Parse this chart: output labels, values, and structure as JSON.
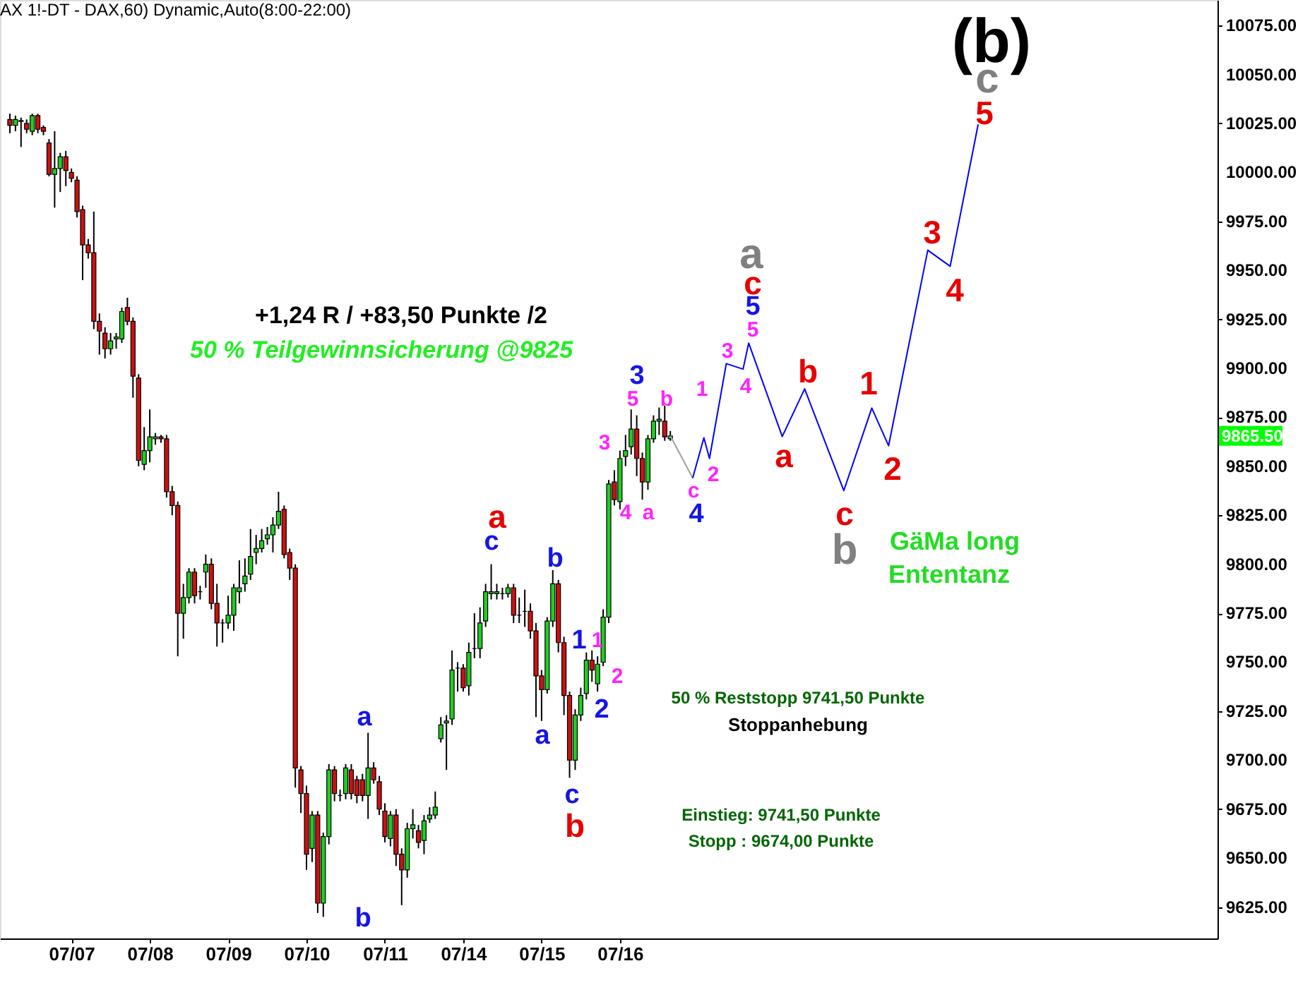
{
  "chart_data": {
    "type": "candlestick",
    "title": "AX 1!-DT - DAX,60) Dynamic,Auto(8:00-22:00)",
    "categories": [
      null,
      null,
      null,
      null,
      null,
      null,
      null,
      null,
      null,
      null,
      null,
      "07/07",
      null,
      null,
      null,
      null,
      null,
      null,
      null,
      null,
      null,
      null,
      null,
      null,
      null,
      "07/08",
      null,
      null,
      null,
      null,
      null,
      null,
      null,
      null,
      null,
      null,
      null,
      null,
      null,
      "07/09",
      null,
      null,
      null,
      null,
      null,
      null,
      null,
      null,
      null,
      null,
      null,
      null,
      null,
      "07/10",
      null,
      null,
      null,
      null,
      null,
      null,
      null,
      null,
      null,
      null,
      null,
      null,
      null,
      "07/11",
      null,
      null,
      null,
      null,
      null,
      null,
      null,
      null,
      null,
      null,
      null,
      null,
      null,
      "07/14",
      null,
      null,
      null,
      null,
      null,
      null,
      null,
      null,
      null,
      null,
      null,
      null,
      null,
      "07/15",
      null,
      null,
      null,
      null,
      null,
      null,
      null,
      null,
      null,
      null,
      null,
      null,
      null,
      "07/16",
      null,
      null,
      null,
      null,
      null,
      null,
      null,
      null,
      null,
      null,
      null,
      null,
      null,
      null,
      null,
      null,
      null,
      null,
      null,
      null,
      null,
      null,
      null,
      null,
      null,
      null,
      null,
      null,
      null,
      null,
      null,
      null,
      null,
      null,
      null,
      null,
      null,
      null,
      null,
      null,
      null,
      null,
      null,
      null,
      null,
      null,
      null,
      null,
      null,
      null,
      null,
      null,
      null,
      null,
      null,
      null,
      null,
      null,
      null,
      null,
      null,
      null,
      null,
      null,
      null,
      null,
      null,
      null,
      null,
      null,
      null,
      null,
      null,
      null,
      null,
      null,
      null,
      null,
      null,
      null,
      null,
      null,
      null,
      null,
      null,
      null,
      null,
      null,
      null,
      null,
      null,
      null,
      null,
      null,
      null,
      null,
      null,
      null,
      null,
      null,
      null,
      null,
      null,
      null,
      null
    ],
    "legend": false,
    "ohlc": [
      [
        10027,
        10030,
        10020,
        10024
      ],
      [
        10024,
        10029,
        10021,
        10027
      ],
      [
        10026,
        10028,
        10013,
        10026.5
      ],
      [
        10025,
        10027,
        10020,
        10022
      ],
      [
        10021,
        10030,
        10019,
        10029
      ],
      [
        10029,
        10030,
        10020,
        10022
      ],
      [
        10023,
        10024,
        10019,
        10021
      ],
      [
        10015,
        10017,
        9998,
        9999
      ],
      [
        9999,
        10021,
        9982,
        10002
      ],
      [
        10002,
        10010,
        9990,
        10008
      ],
      [
        10008,
        10011,
        9993,
        10001
      ],
      [
        10000,
        10002,
        9995,
        9997
      ],
      [
        9996,
        9998,
        9977,
        9980
      ],
      [
        9981,
        9983,
        9945,
        9963
      ],
      [
        9963,
        9966,
        9956,
        9959
      ],
      [
        9959,
        9980,
        9920,
        9924
      ],
      [
        9924,
        9928,
        9907,
        9919
      ],
      [
        9918,
        9921,
        9905,
        9910
      ],
      [
        9910,
        9918,
        9907,
        9914
      ],
      [
        9915,
        9918,
        9910,
        9916
      ],
      [
        9915,
        9931,
        9913,
        9929
      ],
      [
        9931,
        9936,
        9922,
        9924
      ],
      [
        9924,
        9926,
        9885,
        9896
      ],
      [
        9895,
        9897,
        9850,
        9853
      ],
      [
        9851,
        9870,
        9848,
        9858
      ],
      [
        9858,
        9879,
        9852,
        9865
      ],
      [
        9864,
        9867,
        9861,
        9865
      ],
      [
        9865,
        9866,
        9862,
        9864
      ],
      [
        9864,
        9866,
        9834,
        9837
      ],
      [
        9837,
        9840,
        9825,
        9830
      ],
      [
        9830,
        9832,
        9753,
        9775
      ],
      [
        9775,
        9790,
        9762,
        9783
      ],
      [
        9783,
        9798,
        9780,
        9796
      ],
      [
        9796,
        9798,
        9780,
        9784
      ],
      [
        9786,
        9789,
        9782,
        9786
      ],
      [
        9796,
        9805,
        9788,
        9800
      ],
      [
        9800,
        9803,
        9777,
        9780
      ],
      [
        9780,
        9790,
        9758,
        9770
      ],
      [
        9770,
        9772,
        9760,
        9770
      ],
      [
        9770,
        9784,
        9767,
        9774
      ],
      [
        9774,
        9790,
        9766,
        9788
      ],
      [
        9786,
        9802,
        9780,
        9788
      ],
      [
        9790,
        9803,
        9786,
        9794
      ],
      [
        9795,
        9818,
        9792,
        9804
      ],
      [
        9806,
        9815,
        9800,
        9808
      ],
      [
        9808,
        9818,
        9806,
        9812
      ],
      [
        9813,
        9819,
        9810,
        9815
      ],
      [
        9815,
        9824,
        9806,
        9820
      ],
      [
        9820,
        9837,
        9818,
        9827
      ],
      [
        9828,
        9830,
        9803,
        9805
      ],
      [
        9806,
        9808,
        9792,
        9798
      ],
      [
        9798,
        9800,
        9686,
        9696
      ],
      [
        9695,
        9697,
        9673,
        9683
      ],
      [
        9683,
        9687,
        9644,
        9652
      ],
      [
        9655,
        9674,
        9648,
        9672
      ],
      [
        9672,
        9674,
        9622,
        9627
      ],
      [
        9627,
        9663,
        9620,
        9661
      ],
      [
        9661,
        9698,
        9657,
        9695
      ],
      [
        9695,
        9697,
        9679,
        9683
      ],
      [
        9682,
        9685,
        9679,
        9682
      ],
      [
        9683,
        9698,
        9680,
        9696
      ],
      [
        9695,
        9698,
        9680,
        9683
      ],
      [
        9690,
        9692,
        9678,
        9682
      ],
      [
        9690,
        9693,
        9679,
        9682
      ],
      [
        9682,
        9714,
        9670,
        9696
      ],
      [
        9696,
        9699,
        9688,
        9690
      ],
      [
        9689,
        9692,
        9672,
        9675
      ],
      [
        9674,
        9678,
        9658,
        9661
      ],
      [
        9660,
        9674,
        9656,
        9672
      ],
      [
        9672,
        9675,
        9646,
        9652
      ],
      [
        9652,
        9655,
        9626,
        9644
      ],
      [
        9644,
        9668,
        9640,
        9665
      ],
      [
        9665,
        9675,
        9660,
        9667
      ],
      [
        9664,
        9667,
        9655,
        9658
      ],
      [
        9659,
        9672,
        9652,
        9669
      ],
      [
        9670,
        9676,
        9668,
        9672
      ],
      [
        9672,
        9684,
        9670,
        9676
      ],
      [
        9711,
        9722,
        9709,
        9718
      ],
      [
        9719,
        9723,
        9695,
        9720
      ],
      [
        9721,
        9756,
        9718,
        9746
      ],
      [
        9747,
        9750,
        9735,
        9747
      ],
      [
        9747,
        9749,
        9735,
        9737
      ],
      [
        9738,
        9760,
        9733,
        9755
      ],
      [
        9757,
        9775,
        9752,
        9757
      ],
      [
        9757,
        9778,
        9752,
        9770
      ],
      [
        9771,
        9790,
        9768,
        9786
      ],
      [
        9785,
        9800,
        9782,
        9786
      ],
      [
        9785,
        9790,
        9782,
        9786
      ],
      [
        9785,
        9788,
        9782,
        9785
      ],
      [
        9785,
        9790,
        9783,
        9788
      ],
      [
        9788,
        9790,
        9770,
        9774
      ],
      [
        9774,
        9783,
        9770,
        9774
      ],
      [
        9776,
        9787,
        9768,
        9776
      ],
      [
        9776,
        9780,
        9762,
        9766
      ],
      [
        9766,
        9770,
        9722,
        9743
      ],
      [
        9743,
        9746,
        9720,
        9736
      ],
      [
        9736,
        9773,
        9734,
        9771
      ],
      [
        9771,
        9797,
        9768,
        9790
      ],
      [
        9790,
        9792,
        9755,
        9760
      ],
      [
        9760,
        9763,
        9723,
        9733
      ],
      [
        9733,
        9735,
        9691,
        9700
      ],
      [
        9700,
        9726,
        9695,
        9723
      ],
      [
        9723,
        9737,
        9720,
        9733
      ],
      [
        9734,
        9755,
        9731,
        9751
      ],
      [
        9751,
        9756,
        9740,
        9746
      ],
      [
        9739,
        9753,
        9735,
        9749
      ],
      [
        9750,
        9777,
        9748,
        9773
      ],
      [
        9773,
        9843,
        9770,
        9841
      ],
      [
        9842,
        9848,
        9830,
        9833
      ],
      [
        9832,
        9858,
        9828,
        9854
      ],
      [
        9855,
        9866,
        9850,
        9858
      ],
      [
        9860,
        9879,
        9856,
        9869
      ],
      [
        9869,
        9876,
        9845,
        9854
      ],
      [
        9854,
        9857,
        9833,
        9842
      ],
      [
        9842,
        9866,
        9838,
        9864
      ],
      [
        9864,
        9876,
        9862,
        9873
      ],
      [
        9873,
        9880,
        9866,
        9874
      ],
      [
        9873,
        9881,
        9863,
        9865
      ],
      [
        9864,
        9868,
        9863,
        9865.5
      ],
      null,
      null,
      null,
      null,
      null,
      null,
      null,
      null,
      null,
      null,
      null,
      null,
      null,
      null,
      null,
      null,
      null,
      null,
      null,
      null,
      null,
      null,
      null,
      null,
      null,
      null,
      null,
      null,
      null,
      null,
      null,
      null,
      null,
      null,
      null,
      null,
      null,
      null,
      null,
      null,
      null,
      null,
      null,
      null,
      null,
      null,
      null,
      null,
      null,
      null,
      null,
      null,
      null,
      null,
      null,
      null,
      null,
      null,
      null,
      null,
      null,
      null,
      null,
      null,
      null,
      null,
      null,
      null,
      null,
      null,
      null,
      null,
      null,
      null,
      null,
      null,
      null,
      null,
      null,
      null,
      null,
      null,
      null,
      null,
      null,
      null,
      null,
      null,
      null,
      null,
      null,
      null,
      null,
      null,
      null,
      null
    ],
    "series": [
      {
        "type": "line",
        "color": "#a0a0a0",
        "values": [
          null,
          null,
          null,
          null,
          null,
          null,
          null,
          null,
          null,
          null,
          null,
          null,
          null,
          null,
          null,
          null,
          null,
          null,
          null,
          null,
          null,
          null,
          null,
          null,
          null,
          null,
          null,
          null,
          null,
          null,
          null,
          null,
          null,
          null,
          null,
          null,
          null,
          null,
          null,
          null,
          null,
          null,
          null,
          null,
          null,
          null,
          null,
          null,
          null,
          null,
          null,
          null,
          null,
          null,
          null,
          null,
          null,
          null,
          null,
          null,
          null,
          null,
          null,
          null,
          null,
          null,
          null,
          null,
          null,
          null,
          null,
          null,
          null,
          null,
          null,
          null,
          null,
          null,
          null,
          null,
          null,
          null,
          null,
          null,
          null,
          null,
          null,
          null,
          null,
          null,
          null,
          null,
          null,
          null,
          null,
          null,
          null,
          null,
          null,
          null,
          null,
          null,
          null,
          null,
          null,
          null,
          null,
          null,
          null,
          null,
          null,
          null,
          null,
          null,
          null,
          null,
          null,
          null,
          9865.5,
          null,
          null,
          null,
          9844,
          null,
          null,
          null,
          null,
          null,
          null,
          null,
          null,
          null,
          null,
          null,
          null,
          null,
          null,
          null,
          null,
          null,
          null,
          null,
          null,
          null,
          null,
          null,
          null,
          null,
          null,
          null,
          null,
          null,
          null,
          null,
          null,
          null,
          null,
          null,
          null,
          null,
          null,
          null,
          null,
          null,
          null,
          null,
          null,
          null,
          null,
          null,
          null,
          null,
          null,
          null,
          null,
          null,
          null,
          null,
          null,
          null,
          null,
          null,
          null,
          null,
          null,
          null,
          null,
          null,
          null,
          null,
          null,
          null,
          null,
          null,
          null,
          null,
          null,
          null,
          null,
          null,
          null,
          null,
          null,
          null,
          null,
          null,
          null,
          null,
          null,
          null,
          null,
          null,
          null,
          null,
          null
        ]
      },
      {
        "type": "line",
        "color": "#0000ff",
        "values": [
          null,
          null,
          null,
          null,
          null,
          null,
          null,
          null,
          null,
          null,
          null,
          null,
          null,
          null,
          null,
          null,
          null,
          null,
          null,
          null,
          null,
          null,
          null,
          null,
          null,
          null,
          null,
          null,
          null,
          null,
          null,
          null,
          null,
          null,
          null,
          null,
          null,
          null,
          null,
          null,
          null,
          null,
          null,
          null,
          null,
          null,
          null,
          null,
          null,
          null,
          null,
          null,
          null,
          null,
          null,
          null,
          null,
          null,
          null,
          null,
          null,
          null,
          null,
          null,
          null,
          null,
          null,
          null,
          null,
          null,
          null,
          null,
          null,
          null,
          null,
          null,
          null,
          null,
          null,
          null,
          null,
          null,
          null,
          null,
          null,
          null,
          null,
          null,
          null,
          null,
          null,
          null,
          null,
          null,
          null,
          null,
          null,
          null,
          null,
          null,
          null,
          null,
          null,
          null,
          null,
          null,
          null,
          null,
          null,
          null,
          null,
          null,
          null,
          null,
          null,
          null,
          null,
          null,
          null,
          null,
          null,
          null,
          9844,
          null,
          9864.5,
          9854,
          null,
          null,
          9902.4,
          null,
          null,
          9899.6,
          9912.9,
          null,
          null,
          null,
          null,
          null,
          9865.2,
          null,
          null,
          null,
          9889.5,
          null,
          null,
          null,
          null,
          null,
          null,
          9837.6,
          null,
          null,
          null,
          null,
          9879.7,
          null,
          null,
          9860.5,
          null,
          null,
          null,
          null,
          null,
          null,
          9960.3,
          null,
          null,
          null,
          9952.1,
          null,
          null,
          null,
          null,
          10024.5,
          null,
          null,
          null,
          null,
          null,
          null,
          null,
          null,
          null,
          null,
          null,
          null,
          null,
          null,
          null,
          null,
          null,
          null,
          null,
          null,
          null,
          null,
          null,
          null,
          null,
          null,
          null,
          null,
          null,
          null,
          null,
          null,
          null,
          null,
          null,
          null,
          null,
          null,
          null,
          null,
          null
        ]
      }
    ],
    "ylim": [
      9609,
      10088
    ],
    "yticks": [
      {
        "value": 9625,
        "label": "9625.00"
      },
      {
        "value": 9650,
        "label": "9650.00"
      },
      {
        "value": 9675,
        "label": "9675.00"
      },
      {
        "value": 9700,
        "label": "9700.00"
      },
      {
        "value": 9725,
        "label": "9725.00"
      },
      {
        "value": 9750,
        "label": "9750.00"
      },
      {
        "value": 9775,
        "label": "9775.00"
      },
      {
        "value": 9800,
        "label": "9800.00"
      },
      {
        "value": 9825,
        "label": "9825.00"
      },
      {
        "value": 9850,
        "label": "9850.00"
      },
      {
        "value": 9875,
        "label": "9875.00"
      },
      {
        "value": 9900,
        "label": "9900.00"
      },
      {
        "value": 9925,
        "label": "9925.00"
      },
      {
        "value": 9950,
        "label": "9950.00"
      },
      {
        "value": 9975,
        "label": "9975.00"
      },
      {
        "value": 10000,
        "label": "10000.00"
      },
      {
        "value": 10025,
        "label": "10025.00"
      },
      {
        "value": 10050,
        "label": "10050.00"
      },
      {
        "value": 10075,
        "label": "10075.00"
      }
    ],
    "ref_lines": [
      {
        "axis": "y",
        "value": 9865.5,
        "label": "9865.50",
        "color": "#00ff00"
      }
    ],
    "grid": false,
    "annotations": [
      "+1,24 R / +83,50 Punkte /2",
      "50 % Teilgewinnsicherung @9825",
      "GäMa long",
      "Ententanz",
      "50 % Reststopp 9741,50 Punkte",
      "Stoppanhebung",
      "Einstieg: 9741,50 Punkte",
      "Stopp    : 9674,00 Punkte",
      "a",
      "b",
      "a",
      "c",
      "b",
      "a",
      "1",
      "1",
      "2",
      "2",
      "c",
      "b",
      "3",
      "4",
      "a",
      "3",
      "5",
      "b",
      "4",
      "c",
      "1",
      "2",
      "3",
      "4",
      "5",
      "5",
      "c",
      "a",
      "a",
      "b",
      "c",
      "b",
      "1",
      "2",
      "3",
      "4",
      "5",
      "c",
      "(b)"
    ]
  }
}
